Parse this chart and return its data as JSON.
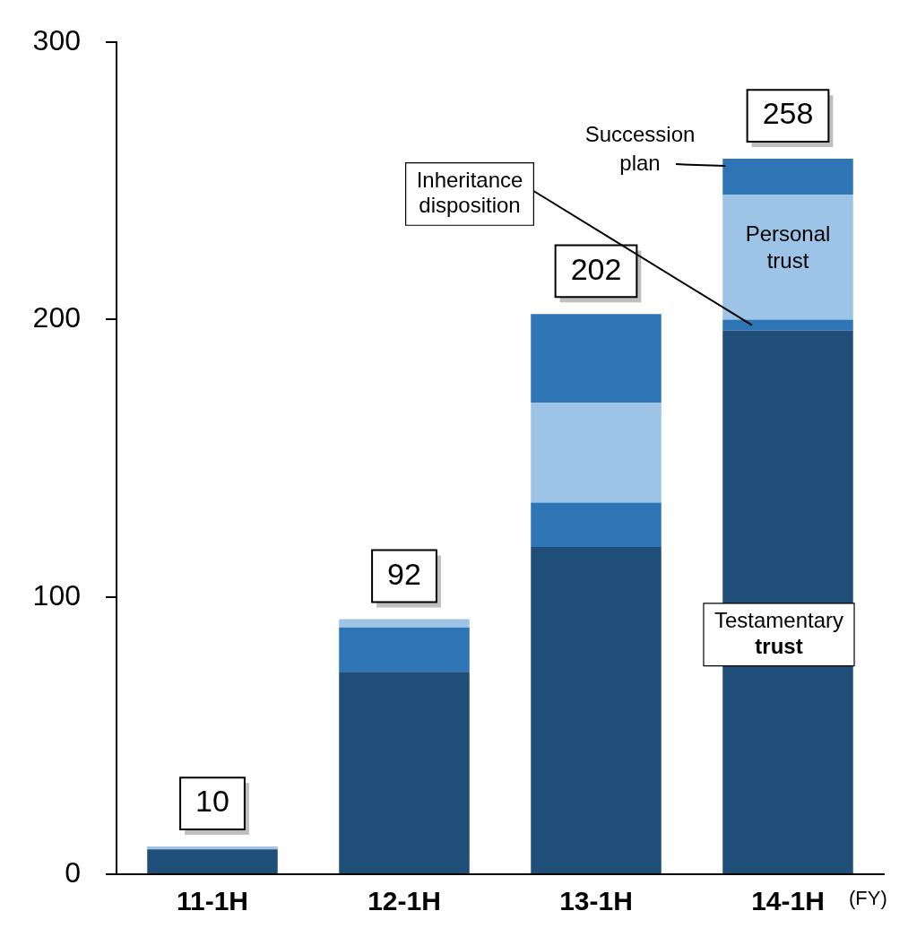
{
  "chart_data": {
    "type": "bar",
    "stacked": true,
    "categories": [
      "11-1H",
      "12-1H",
      "13-1H",
      "14-1H"
    ],
    "series": [
      {
        "name": "Testamentary trust",
        "color": "#1f4e79",
        "values": [
          9,
          73,
          118,
          196
        ]
      },
      {
        "name": "Inheritance disposition",
        "color": "#2e75b6",
        "values": [
          0,
          16,
          16,
          4
        ]
      },
      {
        "name": "Personal trust",
        "color": "#9dc3e6",
        "values": [
          1,
          3,
          36,
          45
        ]
      },
      {
        "name": "Succession plan",
        "color": "#2e75b6",
        "values": [
          0,
          0,
          32,
          13
        ]
      }
    ],
    "totals": [
      "10",
      "92",
      "202",
      "258"
    ],
    "xlabel": "(FY)",
    "ylim": [
      0,
      300
    ],
    "yticks": [
      0,
      100,
      200,
      300
    ],
    "grid": false,
    "legend": false
  }
}
